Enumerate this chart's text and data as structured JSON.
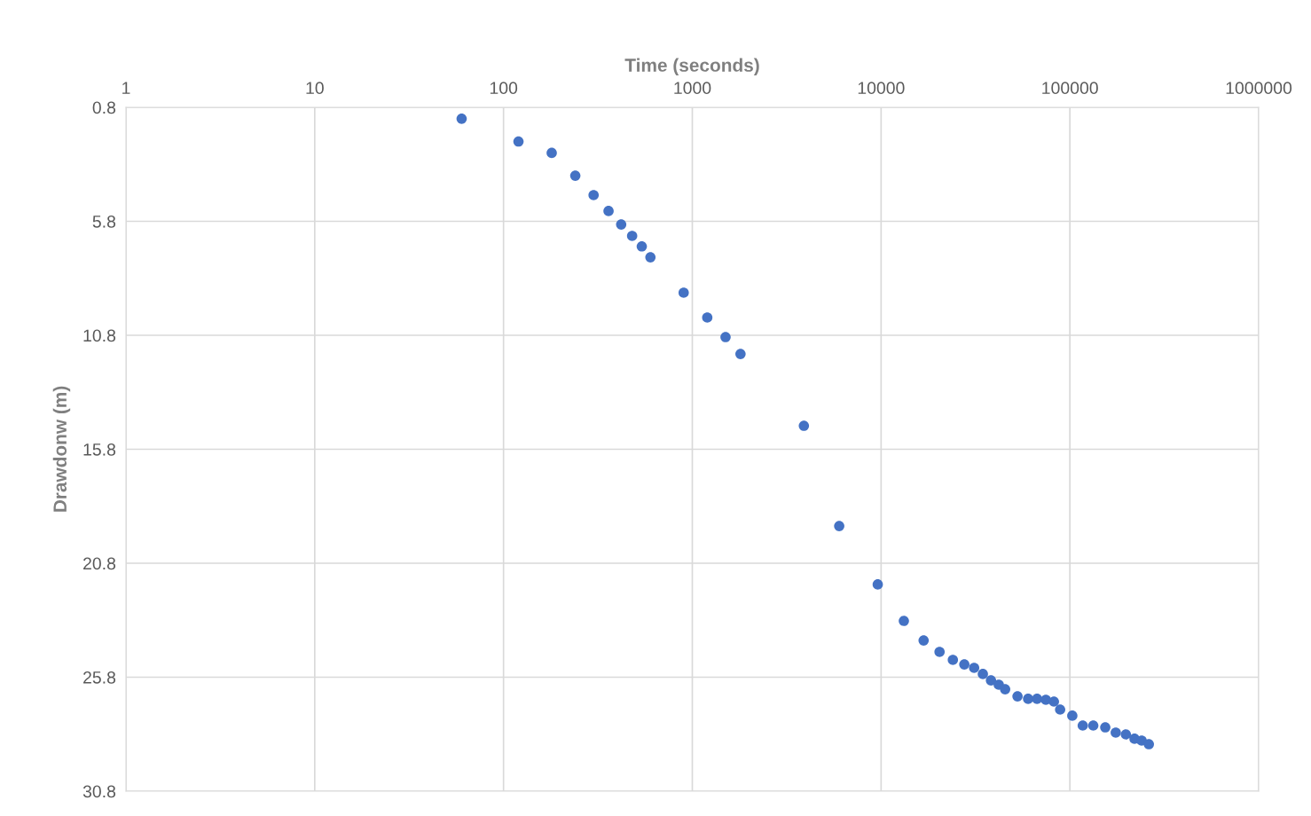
{
  "chart_data": {
    "type": "scatter",
    "xlabel": "Time (seconds)",
    "ylabel": "Drawdonw (m)",
    "log": "x",
    "grid": true,
    "marker": "circle",
    "legend": false,
    "xlim": [
      1,
      1000000
    ],
    "xticks": [
      1,
      10,
      100,
      1000,
      10000,
      100000,
      1000000
    ],
    "ylim": [
      30.8,
      0.8
    ],
    "yticks": [
      0.8,
      5.8,
      10.8,
      15.8,
      20.8,
      25.8,
      30.8
    ],
    "x": [
      60,
      120,
      180,
      240,
      300,
      360,
      420,
      480,
      540,
      600,
      900,
      1200,
      1500,
      1800,
      3900,
      6000,
      9600,
      13200,
      16800,
      20400,
      24000,
      27600,
      31100,
      34600,
      38200,
      42000,
      45400,
      52800,
      60100,
      67000,
      74600,
      82300,
      88800,
      103000,
      117000,
      133000,
      154000,
      175000,
      198000,
      220000,
      240000,
      262000
    ],
    "series": [
      {
        "color": "#4472c4",
        "values": [
          1.3,
          2.3,
          2.8,
          3.8,
          4.65,
          5.35,
          5.94,
          6.44,
          6.9,
          7.38,
          8.93,
          10.02,
          10.88,
          11.62,
          14.77,
          19.17,
          21.73,
          23.33,
          24.19,
          24.69,
          25.04,
          25.24,
          25.39,
          25.66,
          25.94,
          26.13,
          26.33,
          26.64,
          26.75,
          26.75,
          26.79,
          26.87,
          27.22,
          27.49,
          27.92,
          27.92,
          28.0,
          28.23,
          28.31,
          28.5,
          28.58,
          28.74
        ]
      }
    ]
  }
}
